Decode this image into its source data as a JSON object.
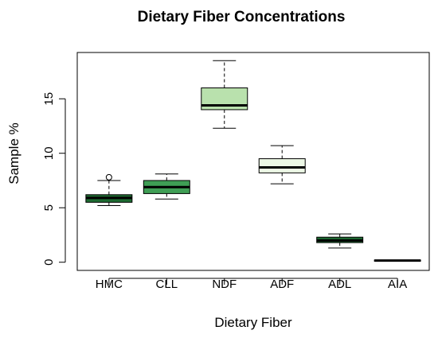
{
  "chart_data": {
    "type": "boxplot",
    "title": "Dietary Fiber Concentrations",
    "xlabel": "Dietary Fiber",
    "ylabel": "Sample %",
    "ylim": [
      -0.75,
      19.25
    ],
    "yticks": [
      0,
      5,
      10,
      15
    ],
    "grid": false,
    "legend": "none",
    "categories": [
      "HMC",
      "CLL",
      "NDF",
      "ADF",
      "ADL",
      "AIA"
    ],
    "boxes": [
      {
        "label": "HMC",
        "whisker_low": 5.2,
        "q1": 5.5,
        "median": 5.9,
        "q3": 6.2,
        "whisker_high": 7.5,
        "outliers": [
          7.8
        ],
        "fill": "#1e6b32"
      },
      {
        "label": "CLL",
        "whisker_low": 5.8,
        "q1": 6.3,
        "median": 6.9,
        "q3": 7.5,
        "whisker_high": 8.1,
        "outliers": [],
        "fill": "#3f9e55"
      },
      {
        "label": "NDF",
        "whisker_low": 12.3,
        "q1": 14.0,
        "median": 14.4,
        "q3": 16.0,
        "whisker_high": 18.5,
        "outliers": [],
        "fill": "#b9e1ad"
      },
      {
        "label": "ADF",
        "whisker_low": 7.2,
        "q1": 8.2,
        "median": 8.7,
        "q3": 9.5,
        "whisker_high": 10.7,
        "outliers": [],
        "fill": "#edf8e6"
      },
      {
        "label": "ADL",
        "whisker_low": 1.3,
        "q1": 1.8,
        "median": 2.0,
        "q3": 2.3,
        "whisker_high": 2.6,
        "outliers": [],
        "fill": "#1e6b32"
      },
      {
        "label": "AIA",
        "whisker_low": 0.1,
        "q1": 0.1,
        "median": 0.15,
        "q3": 0.2,
        "whisker_high": 0.2,
        "outliers": [],
        "fill": "#1e6b32"
      }
    ]
  }
}
